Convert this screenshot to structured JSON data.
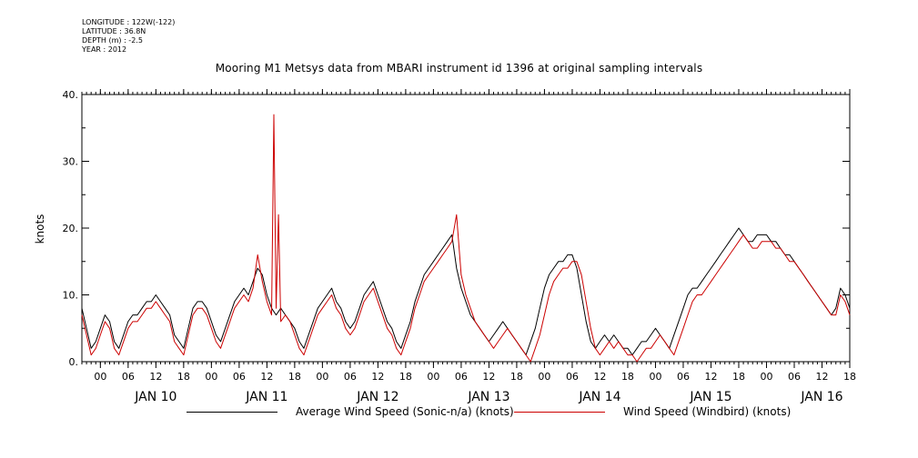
{
  "meta": {
    "longitude": "LONGITUDE : 122W(-122)",
    "latitude": "LATITUDE : 36.8N",
    "depth": "DEPTH (m) : -2.5",
    "year": "YEAR : 2012"
  },
  "chart_data": {
    "type": "line",
    "title": "Mooring M1 Metsys data from MBARI instrument id 1396 at original sampling intervals",
    "ylabel": "knots",
    "xlabel": "",
    "ylim": [
      0,
      40
    ],
    "y_ticks": [
      "0.",
      "10.",
      "20.",
      "30.",
      "40."
    ],
    "x_range_hours": [
      -4,
      162
    ],
    "x_units": "hours since 2012-01-10 00:00",
    "x_hour_labels": [
      "00",
      "06",
      "12",
      "18",
      "00",
      "06",
      "12",
      "18",
      "00",
      "06",
      "12",
      "18",
      "00",
      "06",
      "12",
      "18",
      "00",
      "06",
      "12",
      "18",
      "00",
      "06",
      "12",
      "18",
      "00",
      "06",
      "12",
      "18"
    ],
    "x_day_labels": [
      "JAN 10",
      "JAN 11",
      "JAN 12",
      "JAN 13",
      "JAN 14",
      "JAN 15",
      "JAN 16"
    ],
    "grid": false,
    "legend_position": "bottom",
    "series": [
      {
        "name": "Average Wind Speed (Sonic-n/a) (knots)",
        "color": "#000000",
        "x": [
          -4,
          -3,
          -2,
          -1,
          0,
          1,
          2,
          3,
          4,
          5,
          6,
          7,
          8,
          9,
          10,
          11,
          12,
          13,
          14,
          15,
          16,
          17,
          18,
          19,
          20,
          21,
          22,
          23,
          24,
          25,
          26,
          27,
          28,
          29,
          30,
          31,
          32,
          33,
          34,
          35,
          36,
          37,
          38,
          39,
          40,
          41,
          42,
          43,
          44,
          45,
          46,
          47,
          48,
          49,
          50,
          51,
          52,
          53,
          54,
          55,
          56,
          57,
          58,
          59,
          60,
          61,
          62,
          63,
          64,
          65,
          66,
          67,
          68,
          69,
          70,
          71,
          72,
          73,
          74,
          75,
          76,
          77,
          78,
          79,
          80,
          81,
          82,
          83,
          84,
          85,
          86,
          87,
          88,
          89,
          90,
          91,
          92,
          93,
          94,
          95,
          96,
          97,
          98,
          99,
          100,
          101,
          102,
          103,
          104,
          105,
          106,
          107,
          108,
          109,
          110,
          111,
          112,
          113,
          114,
          115,
          116,
          117,
          118,
          119,
          120,
          121,
          122,
          123,
          124,
          125,
          126,
          127,
          128,
          129,
          130,
          131,
          132,
          133,
          134,
          135,
          136,
          137,
          138,
          139,
          140,
          141,
          142,
          143,
          144,
          145,
          146,
          147,
          148,
          149,
          150,
          151,
          152,
          153,
          154,
          155,
          156,
          157,
          158,
          159,
          160,
          161,
          162
        ],
        "y": [
          8,
          5,
          2,
          3,
          5,
          7,
          6,
          3,
          2,
          4,
          6,
          7,
          7,
          8,
          9,
          9,
          10,
          9,
          8,
          7,
          4,
          3,
          2,
          5,
          8,
          9,
          9,
          8,
          6,
          4,
          3,
          5,
          7,
          9,
          10,
          11,
          10,
          12,
          14,
          13,
          10,
          8,
          7,
          8,
          7,
          6,
          5,
          3,
          2,
          4,
          6,
          8,
          9,
          10,
          11,
          9,
          8,
          6,
          5,
          6,
          8,
          10,
          11,
          12,
          10,
          8,
          6,
          5,
          3,
          2,
          4,
          6,
          9,
          11,
          13,
          14,
          15,
          16,
          17,
          18,
          19,
          14,
          11,
          9,
          7,
          6,
          5,
          4,
          3,
          4,
          5,
          6,
          5,
          4,
          3,
          2,
          1,
          3,
          5,
          8,
          11,
          13,
          14,
          15,
          15,
          16,
          16,
          14,
          10,
          6,
          3,
          2,
          3,
          4,
          3,
          4,
          3,
          2,
          2,
          1,
          2,
          3,
          3,
          4,
          5,
          4,
          3,
          2,
          4,
          6,
          8,
          10,
          11,
          11,
          12,
          13,
          14,
          15,
          16,
          17,
          18,
          19,
          20,
          19,
          18,
          18,
          19,
          19,
          19,
          18,
          18,
          17,
          16,
          16,
          15,
          14,
          13,
          12,
          11,
          10,
          9,
          8,
          7,
          8,
          11,
          10,
          8
        ]
      },
      {
        "name": "Wind Speed (Windbird) (knots)",
        "color": "#cc0000",
        "x": [
          -4,
          -3,
          -2,
          -1,
          0,
          1,
          2,
          3,
          4,
          5,
          6,
          7,
          8,
          9,
          10,
          11,
          12,
          13,
          14,
          15,
          16,
          17,
          18,
          19,
          20,
          21,
          22,
          23,
          24,
          25,
          26,
          27,
          28,
          29,
          30,
          31,
          32,
          33,
          34,
          35,
          36,
          37,
          37.5,
          38,
          38.5,
          39,
          40,
          41,
          42,
          43,
          44,
          45,
          46,
          47,
          48,
          49,
          50,
          51,
          52,
          53,
          54,
          55,
          56,
          57,
          58,
          59,
          60,
          61,
          62,
          63,
          64,
          65,
          66,
          67,
          68,
          69,
          70,
          71,
          72,
          73,
          74,
          75,
          76,
          77,
          78,
          79,
          80,
          81,
          82,
          83,
          84,
          85,
          86,
          87,
          88,
          89,
          90,
          91,
          92,
          93,
          94,
          95,
          96,
          97,
          98,
          99,
          100,
          101,
          102,
          103,
          104,
          105,
          106,
          107,
          108,
          109,
          110,
          111,
          112,
          113,
          114,
          115,
          116,
          117,
          118,
          119,
          120,
          121,
          122,
          123,
          124,
          125,
          126,
          127,
          128,
          129,
          130,
          131,
          132,
          133,
          134,
          135,
          136,
          137,
          138,
          139,
          140,
          141,
          142,
          143,
          144,
          145,
          146,
          147,
          148,
          149,
          150,
          151,
          152,
          153,
          154,
          155,
          156,
          157,
          158,
          159,
          160,
          161,
          162
        ],
        "y": [
          7,
          4,
          1,
          2,
          4,
          6,
          5,
          2,
          1,
          3,
          5,
          6,
          6,
          7,
          8,
          8,
          9,
          8,
          7,
          6,
          3,
          2,
          1,
          4,
          7,
          8,
          8,
          7,
          5,
          3,
          2,
          4,
          6,
          8,
          9,
          10,
          9,
          11,
          16,
          12,
          9,
          7,
          37,
          8,
          22,
          6,
          7,
          6,
          4,
          2,
          1,
          3,
          5,
          7,
          8,
          9,
          10,
          8,
          7,
          5,
          4,
          5,
          7,
          9,
          10,
          11,
          9,
          7,
          5,
          4,
          2,
          1,
          3,
          5,
          8,
          10,
          12,
          13,
          14,
          15,
          16,
          17,
          18,
          22,
          13,
          10,
          8,
          6,
          5,
          4,
          3,
          2,
          3,
          4,
          5,
          4,
          3,
          2,
          1,
          0,
          2,
          4,
          7,
          10,
          12,
          13,
          14,
          14,
          15,
          15,
          13,
          9,
          5,
          2,
          1,
          2,
          3,
          2,
          3,
          2,
          1,
          1,
          0,
          1,
          2,
          2,
          3,
          4,
          3,
          2,
          1,
          3,
          5,
          7,
          9,
          10,
          10,
          11,
          12,
          13,
          14,
          15,
          16,
          17,
          18,
          19,
          18,
          17,
          17,
          18,
          18,
          18,
          17,
          17,
          16,
          15,
          15,
          14,
          13,
          12,
          11,
          10,
          9,
          8,
          7,
          7,
          10,
          9,
          7
        ]
      }
    ]
  }
}
